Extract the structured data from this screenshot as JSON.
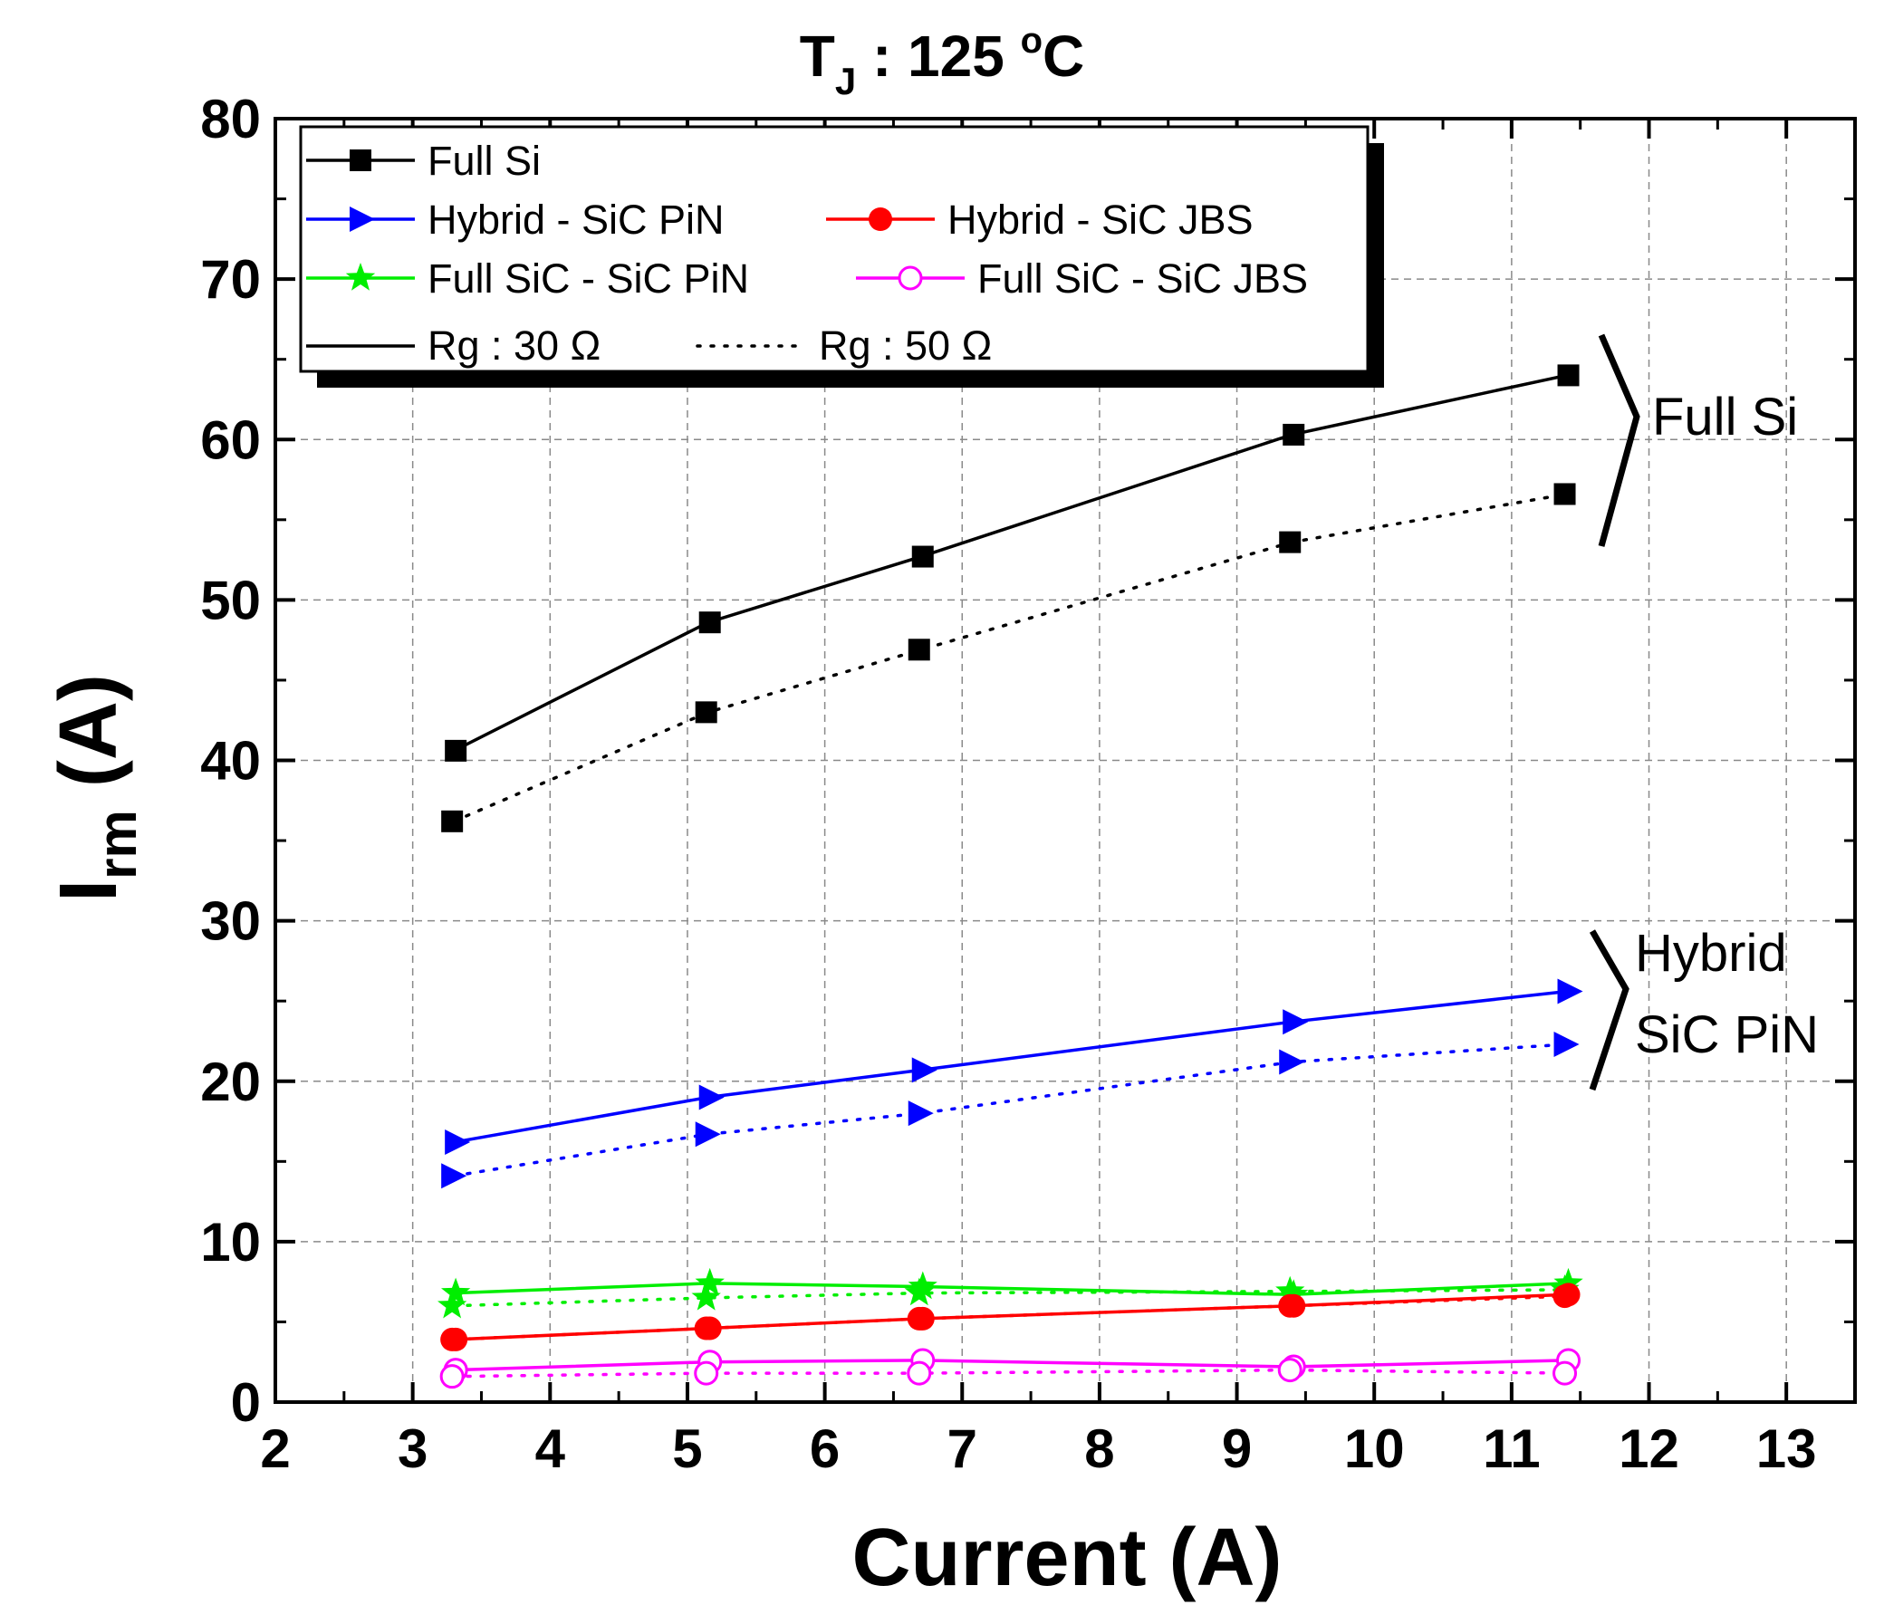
{
  "chart_data": {
    "type": "line",
    "title": {
      "main": "T",
      "sub": "J",
      "rest": " : 125 ",
      "deg": "o",
      "unit": "C"
    },
    "xlabel": "Current (A)",
    "ylabel": {
      "main": "I",
      "sub": "rm",
      "rest": " (A)"
    },
    "xlim": [
      2,
      13.5
    ],
    "ylim": [
      0,
      80
    ],
    "xticks": [
      2,
      3,
      4,
      5,
      6,
      7,
      8,
      9,
      10,
      11,
      12,
      13
    ],
    "yticks": [
      0,
      10,
      20,
      30,
      40,
      50,
      60,
      70,
      80
    ],
    "grid": true,
    "series": [
      {
        "name": "Full Si",
        "rg": "30",
        "color": "#000000",
        "marker": "square",
        "dash": false,
        "x": [
          3.3,
          5.15,
          6.7,
          9.4,
          11.4
        ],
        "y": [
          40.6,
          48.6,
          52.7,
          60.3,
          64.0
        ]
      },
      {
        "name": "Full Si",
        "rg": "50",
        "color": "#000000",
        "marker": "square",
        "dash": true,
        "x": [
          3.3,
          5.15,
          6.7,
          9.4,
          11.4
        ],
        "y": [
          36.2,
          43.0,
          46.9,
          53.6,
          56.6
        ]
      },
      {
        "name": "Hybrid - SiC PiN",
        "rg": "30",
        "color": "#0000ff",
        "marker": "triangle-right",
        "dash": false,
        "x": [
          3.3,
          5.15,
          6.7,
          9.4,
          11.4
        ],
        "y": [
          16.2,
          19.0,
          20.7,
          23.7,
          25.6
        ]
      },
      {
        "name": "Hybrid - SiC PiN",
        "rg": "50",
        "color": "#0000ff",
        "marker": "triangle-right",
        "dash": true,
        "x": [
          3.3,
          5.15,
          6.7,
          9.4,
          11.4
        ],
        "y": [
          14.1,
          16.7,
          18.0,
          21.2,
          22.3
        ]
      },
      {
        "name": "Full SiC - SiC PiN",
        "rg": "30",
        "color": "#00ee00",
        "marker": "star",
        "dash": false,
        "x": [
          3.3,
          5.15,
          6.7,
          9.4,
          11.4
        ],
        "y": [
          6.8,
          7.4,
          7.2,
          6.7,
          7.4
        ]
      },
      {
        "name": "Full SiC - SiC PiN",
        "rg": "50",
        "color": "#00ee00",
        "marker": "star",
        "dash": true,
        "x": [
          3.3,
          5.15,
          6.7,
          9.4,
          11.4
        ],
        "y": [
          6.0,
          6.5,
          6.8,
          6.9,
          7.0
        ]
      },
      {
        "name": "Hybrid - SiC JBS",
        "rg": "30",
        "color": "#ff0000",
        "marker": "circle",
        "dash": false,
        "x": [
          3.3,
          5.15,
          6.7,
          9.4,
          11.4
        ],
        "y": [
          3.9,
          4.6,
          5.2,
          6.0,
          6.7
        ]
      },
      {
        "name": "Hybrid - SiC JBS",
        "rg": "50",
        "color": "#ff0000",
        "marker": "circle",
        "dash": true,
        "x": [
          3.3,
          5.15,
          6.7,
          9.4,
          11.4
        ],
        "y": [
          3.9,
          4.6,
          5.2,
          6.0,
          6.6
        ]
      },
      {
        "name": "Full SiC - SiC JBS",
        "rg": "30",
        "color": "#ff00ff",
        "marker": "circle-open",
        "dash": false,
        "x": [
          3.3,
          5.15,
          6.7,
          9.4,
          11.4
        ],
        "y": [
          2.0,
          2.5,
          2.6,
          2.2,
          2.6
        ]
      },
      {
        "name": "Full SiC - SiC JBS",
        "rg": "50",
        "color": "#ff00ff",
        "marker": "circle-open",
        "dash": true,
        "x": [
          3.3,
          5.15,
          6.7,
          9.4,
          11.4
        ],
        "y": [
          1.6,
          1.8,
          1.8,
          2.0,
          1.8
        ]
      }
    ],
    "legend": {
      "placement": "top-left",
      "entries": [
        {
          "label": "Full Si",
          "color": "#000000",
          "marker": "square"
        },
        {
          "label": "Hybrid - SiC PiN",
          "color": "#0000ff",
          "marker": "triangle-right"
        },
        {
          "label": "Hybrid - SiC JBS",
          "color": "#ff0000",
          "marker": "circle"
        },
        {
          "label": "Full SiC - SiC PiN",
          "color": "#00ee00",
          "marker": "star"
        },
        {
          "label": "Full SiC - SiC JBS",
          "color": "#ff00ff",
          "marker": "circle-open"
        }
      ],
      "rg30": "Rg : 30 Ω",
      "rg50": "Rg : 50 Ω"
    },
    "annotations": {
      "full_si": "Full Si",
      "hybrid_line1": "Hybrid",
      "hybrid_line2": "SiC PiN"
    }
  }
}
